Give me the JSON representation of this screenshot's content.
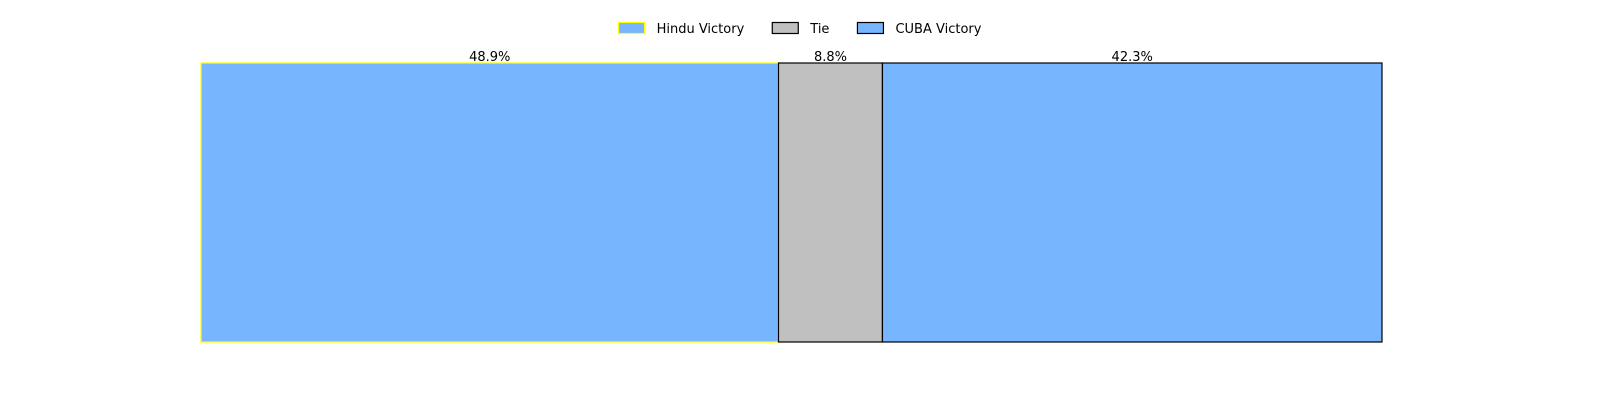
{
  "chart_data": {
    "type": "bar",
    "orientation": "horizontal",
    "stacked": true,
    "xlim": [
      0,
      100
    ],
    "grid": false,
    "legend_position": "top-center",
    "series": [
      {
        "name": "Hindu Victory",
        "value": 48.9,
        "label": "48.9%",
        "color": "#77b5fe",
        "edge_color": "#ffff00"
      },
      {
        "name": "Tie",
        "value": 8.8,
        "label": "8.8%",
        "color": "#c0c0c0",
        "edge_color": "#000000"
      },
      {
        "name": "CUBA Victory",
        "value": 42.3,
        "label": "42.3%",
        "color": "#77b5fe",
        "edge_color": "#000000"
      }
    ]
  }
}
